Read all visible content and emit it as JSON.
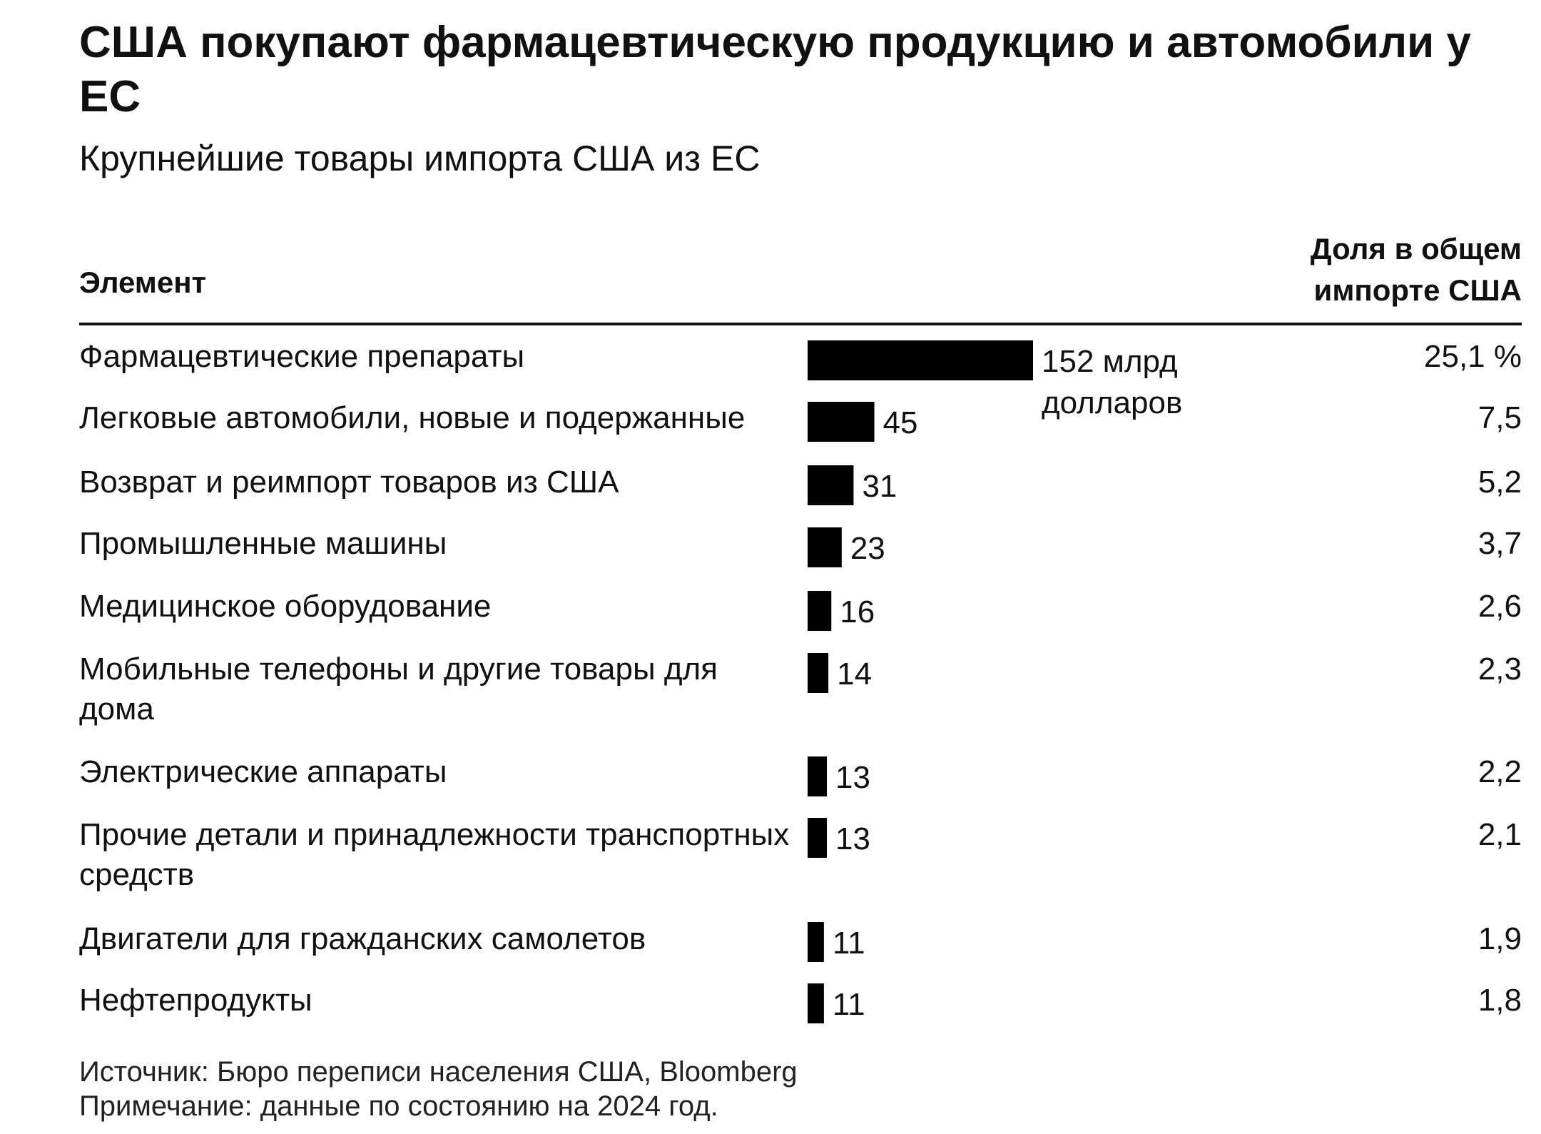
{
  "header": {
    "title": "США покупают фармацевтическую продукцию и автомобили у ЕС",
    "subtitle": "Крупнейшие товары импорта США из ЕС"
  },
  "table": {
    "col_item": "Элемент",
    "col_share": "Доля в общем импорте США"
  },
  "chart_data": {
    "type": "bar",
    "title": "США покупают фармацевтическую продукцию и автомобили у ЕС",
    "subtitle": "Крупнейшие товары импорта США из ЕС",
    "orientation": "horizontal",
    "categories": [
      "Фармацевтические препараты",
      "Легковые автомобили, новые и подержанные",
      "Возврат и реимпорт товаров из США",
      "Промышленные машины",
      "Медицинское оборудование",
      "Мобильные телефоны и другие товары для дома",
      "Электрические аппараты",
      "Прочие детали и принадлежности транспортных средств",
      "Двигатели для гражданских самолетов",
      "Нефтепродукты"
    ],
    "values": [
      152,
      45,
      31,
      23,
      16,
      14,
      13,
      13,
      11,
      11
    ],
    "value_labels": [
      "152 млрд долларов",
      "45",
      "31",
      "23",
      "16",
      "14",
      "13",
      "13",
      "11",
      "11"
    ],
    "shares": [
      "25,1 %",
      "7,5",
      "5,2",
      "3,7",
      "2,6",
      "2,3",
      "2,2",
      "2,1",
      "1,9",
      "1,8"
    ],
    "bar_color": "#000000"
  },
  "footer": {
    "source": "Источник: Бюро переписи населения США, Bloomberg",
    "note": "Примечание: данные по состоянию на 2024 год."
  }
}
